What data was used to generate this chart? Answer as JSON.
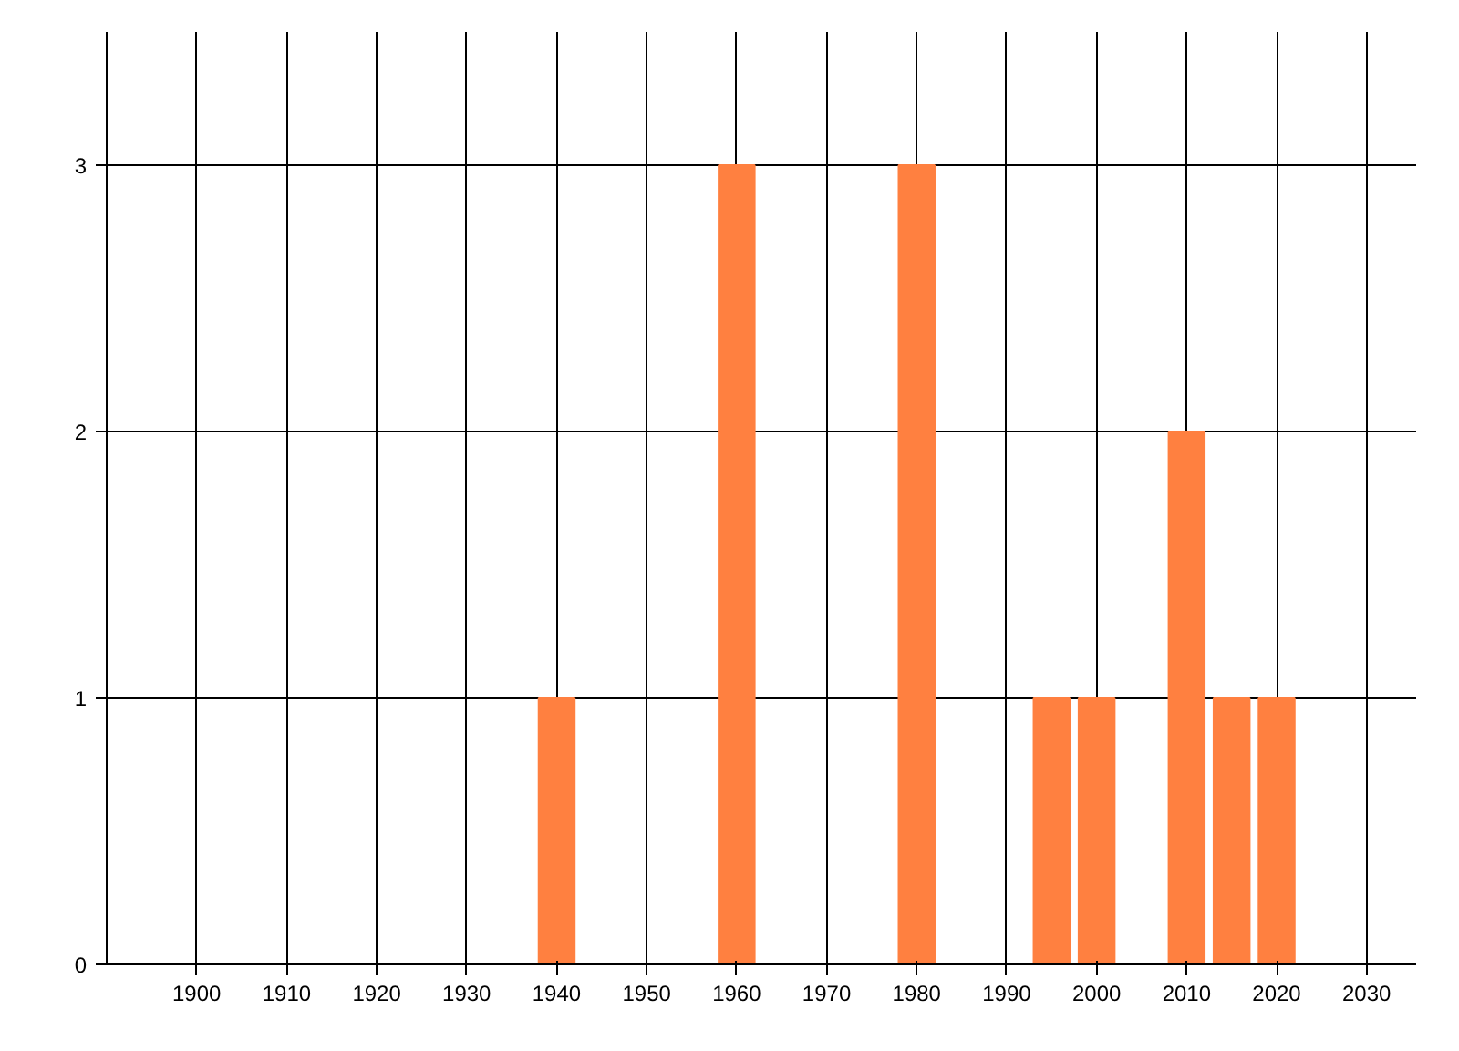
{
  "chart_data": {
    "type": "bar",
    "x": [
      1940,
      1960,
      1980,
      1995,
      2000,
      2010,
      2015,
      2020
    ],
    "values": [
      1,
      3,
      3,
      1,
      1,
      2,
      1,
      1
    ],
    "color": "#ff8040",
    "xlim": [
      1890,
      2035.5
    ],
    "xticks": [
      1900,
      1910,
      1920,
      1930,
      1940,
      1950,
      1960,
      1970,
      1980,
      1990,
      2000,
      2010,
      2020,
      2030
    ],
    "ylim": [
      0,
      3.5
    ],
    "yticks": [
      0,
      1,
      2,
      3
    ],
    "grid": true
  }
}
